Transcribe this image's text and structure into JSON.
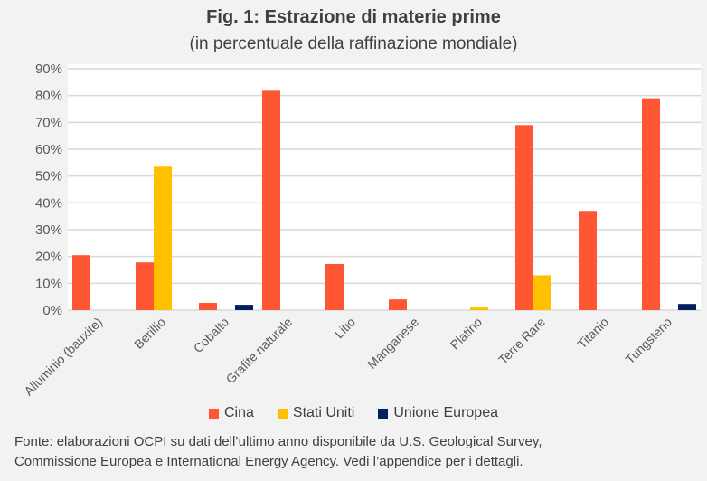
{
  "chart_data": {
    "type": "bar",
    "title": "Fig. 1: Estrazione di materie prime",
    "subtitle": "(in percentuale della raffinazione mondiale)",
    "xlabel": "",
    "ylabel": "",
    "ylim": [
      0,
      90
    ],
    "yticks": [
      "0%",
      "10%",
      "20%",
      "30%",
      "40%",
      "50%",
      "60%",
      "70%",
      "80%",
      "90%"
    ],
    "grid": true,
    "legend_position": "bottom",
    "categories": [
      "Alluminio (bauxite)",
      "Berillio",
      "Cobalto",
      "Grafite naturale",
      "Litio",
      "Manganese",
      "Platino",
      "Terre Rare",
      "Titanio",
      "Tungsteno"
    ],
    "series": [
      {
        "name": "Cina",
        "color": "#ff5733",
        "values": [
          20.5,
          17.8,
          2.7,
          81.8,
          17.2,
          4.0,
          0,
          69.0,
          37.0,
          79.0
        ]
      },
      {
        "name": "Stati Uniti",
        "color": "#ffc000",
        "values": [
          0,
          53.5,
          0,
          0,
          0,
          0,
          1.0,
          13.0,
          0,
          0
        ]
      },
      {
        "name": "Unione Europea",
        "color": "#002060",
        "values": [
          0,
          0,
          2.0,
          0,
          0,
          0,
          0,
          0,
          0,
          2.3
        ]
      }
    ]
  },
  "source": {
    "line1": "Fonte: elaborazioni OCPI su dati dell’ultimo anno disponibile da U.S. Geological Survey,",
    "line2": "Commissione Europea e International Energy Agency. Vedi l’appendice per i dettagli."
  }
}
